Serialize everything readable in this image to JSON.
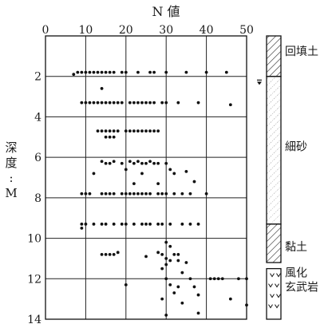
{
  "chart_data": {
    "type": "scatter",
    "title": "N 値",
    "ylabel": [
      "深",
      "度",
      ":",
      "M"
    ],
    "xlim": [
      0,
      50
    ],
    "ylim": [
      0,
      14
    ],
    "x_ticks": [
      0,
      10,
      20,
      30,
      40,
      50
    ],
    "y_ticks": [
      2,
      4,
      6,
      8,
      10,
      12,
      14
    ],
    "grid": true,
    "series": [
      {
        "points": [
          {
            "x": 7,
            "y": 1.9
          },
          {
            "x": 8,
            "y": 1.8
          },
          {
            "x": 9,
            "y": 1.8
          },
          {
            "x": 10,
            "y": 1.8
          },
          {
            "x": 11,
            "y": 1.8
          },
          {
            "x": 12,
            "y": 1.8
          },
          {
            "x": 13,
            "y": 1.8
          },
          {
            "x": 14,
            "y": 1.8
          },
          {
            "x": 15,
            "y": 1.8
          },
          {
            "x": 16,
            "y": 1.8
          },
          {
            "x": 17,
            "y": 1.8
          },
          {
            "x": 19,
            "y": 1.8
          },
          {
            "x": 20,
            "y": 1.8
          },
          {
            "x": 23,
            "y": 1.8
          },
          {
            "x": 26,
            "y": 1.8
          },
          {
            "x": 27,
            "y": 1.8
          },
          {
            "x": 30,
            "y": 1.8
          },
          {
            "x": 35,
            "y": 1.8
          },
          {
            "x": 40,
            "y": 1.8
          },
          {
            "x": 45,
            "y": 1.8
          },
          {
            "x": 14,
            "y": 2.6
          },
          {
            "x": 9,
            "y": 3.3
          },
          {
            "x": 10,
            "y": 3.3
          },
          {
            "x": 11,
            "y": 3.3
          },
          {
            "x": 12,
            "y": 3.3
          },
          {
            "x": 13,
            "y": 3.3
          },
          {
            "x": 14,
            "y": 3.3
          },
          {
            "x": 15,
            "y": 3.3
          },
          {
            "x": 16,
            "y": 3.3
          },
          {
            "x": 17,
            "y": 3.3
          },
          {
            "x": 18,
            "y": 3.3
          },
          {
            "x": 19,
            "y": 3.3
          },
          {
            "x": 21,
            "y": 3.3
          },
          {
            "x": 22,
            "y": 3.3
          },
          {
            "x": 23,
            "y": 3.3
          },
          {
            "x": 24,
            "y": 3.3
          },
          {
            "x": 25,
            "y": 3.3
          },
          {
            "x": 26,
            "y": 3.3
          },
          {
            "x": 27,
            "y": 3.3
          },
          {
            "x": 29,
            "y": 3.3
          },
          {
            "x": 30,
            "y": 3.3
          },
          {
            "x": 33,
            "y": 3.3
          },
          {
            "x": 38,
            "y": 3.3
          },
          {
            "x": 46,
            "y": 3.4
          },
          {
            "x": 13,
            "y": 4.7
          },
          {
            "x": 14,
            "y": 4.7
          },
          {
            "x": 15,
            "y": 4.7
          },
          {
            "x": 16,
            "y": 4.7
          },
          {
            "x": 17,
            "y": 4.7
          },
          {
            "x": 18,
            "y": 4.7
          },
          {
            "x": 20,
            "y": 4.7
          },
          {
            "x": 21,
            "y": 4.7
          },
          {
            "x": 22,
            "y": 4.7
          },
          {
            "x": 23,
            "y": 4.7
          },
          {
            "x": 24,
            "y": 4.7
          },
          {
            "x": 25,
            "y": 4.7
          },
          {
            "x": 26,
            "y": 4.7
          },
          {
            "x": 27,
            "y": 4.7
          },
          {
            "x": 28,
            "y": 4.7
          },
          {
            "x": 15,
            "y": 5.0
          },
          {
            "x": 16,
            "y": 5.0
          },
          {
            "x": 17,
            "y": 5.0
          },
          {
            "x": 14,
            "y": 6.2
          },
          {
            "x": 17,
            "y": 6.2
          },
          {
            "x": 21,
            "y": 6.2
          },
          {
            "x": 23,
            "y": 6.2
          },
          {
            "x": 26,
            "y": 6.2
          },
          {
            "x": 15,
            "y": 6.3
          },
          {
            "x": 16,
            "y": 6.3
          },
          {
            "x": 19,
            "y": 6.3
          },
          {
            "x": 22,
            "y": 6.3
          },
          {
            "x": 24,
            "y": 6.3
          },
          {
            "x": 25,
            "y": 6.3
          },
          {
            "x": 27,
            "y": 6.3
          },
          {
            "x": 28,
            "y": 6.3
          },
          {
            "x": 30,
            "y": 6.3
          },
          {
            "x": 20,
            "y": 6.6
          },
          {
            "x": 31,
            "y": 6.6
          },
          {
            "x": 12,
            "y": 6.8
          },
          {
            "x": 24,
            "y": 6.8
          },
          {
            "x": 32,
            "y": 6.8
          },
          {
            "x": 35,
            "y": 6.7
          },
          {
            "x": 22,
            "y": 7.3
          },
          {
            "x": 37,
            "y": 7.2
          },
          {
            "x": 28,
            "y": 7.3
          },
          {
            "x": 9,
            "y": 7.8
          },
          {
            "x": 10,
            "y": 7.8
          },
          {
            "x": 11,
            "y": 7.8
          },
          {
            "x": 14,
            "y": 7.8
          },
          {
            "x": 15,
            "y": 7.8
          },
          {
            "x": 16,
            "y": 7.8
          },
          {
            "x": 17,
            "y": 7.8
          },
          {
            "x": 19,
            "y": 7.8
          },
          {
            "x": 20,
            "y": 7.8
          },
          {
            "x": 21,
            "y": 7.8
          },
          {
            "x": 22,
            "y": 7.8
          },
          {
            "x": 23,
            "y": 7.8
          },
          {
            "x": 24,
            "y": 7.8
          },
          {
            "x": 25,
            "y": 7.8
          },
          {
            "x": 26,
            "y": 7.8
          },
          {
            "x": 28,
            "y": 7.8
          },
          {
            "x": 29,
            "y": 7.8
          },
          {
            "x": 30,
            "y": 7.8
          },
          {
            "x": 32,
            "y": 7.8
          },
          {
            "x": 34,
            "y": 7.8
          },
          {
            "x": 36,
            "y": 7.8
          },
          {
            "x": 40,
            "y": 7.8
          },
          {
            "x": 9,
            "y": 9.3
          },
          {
            "x": 10,
            "y": 9.3
          },
          {
            "x": 12,
            "y": 9.3
          },
          {
            "x": 14,
            "y": 9.3
          },
          {
            "x": 15,
            "y": 9.3
          },
          {
            "x": 17,
            "y": 9.3
          },
          {
            "x": 19,
            "y": 9.3
          },
          {
            "x": 20,
            "y": 9.3
          },
          {
            "x": 22,
            "y": 9.3
          },
          {
            "x": 24,
            "y": 9.3
          },
          {
            "x": 25,
            "y": 9.3
          },
          {
            "x": 26,
            "y": 9.3
          },
          {
            "x": 28,
            "y": 9.3
          },
          {
            "x": 29,
            "y": 9.3
          },
          {
            "x": 31,
            "y": 9.3
          },
          {
            "x": 34,
            "y": 9.3
          },
          {
            "x": 36,
            "y": 9.3
          },
          {
            "x": 38,
            "y": 9.3
          },
          {
            "x": 9,
            "y": 9.5
          },
          {
            "x": 30,
            "y": 10.2
          },
          {
            "x": 31,
            "y": 10.4
          },
          {
            "x": 14,
            "y": 10.8
          },
          {
            "x": 15,
            "y": 10.8
          },
          {
            "x": 16,
            "y": 10.8
          },
          {
            "x": 17,
            "y": 10.8
          },
          {
            "x": 18,
            "y": 10.7
          },
          {
            "x": 25,
            "y": 10.9
          },
          {
            "x": 28,
            "y": 10.7
          },
          {
            "x": 29,
            "y": 10.8
          },
          {
            "x": 32,
            "y": 10.8
          },
          {
            "x": 33,
            "y": 10.8
          },
          {
            "x": 30,
            "y": 11.0
          },
          {
            "x": 31,
            "y": 11.1
          },
          {
            "x": 33,
            "y": 11.1
          },
          {
            "x": 30,
            "y": 11.3
          },
          {
            "x": 35,
            "y": 11.2
          },
          {
            "x": 29,
            "y": 11.5
          },
          {
            "x": 34,
            "y": 11.7
          },
          {
            "x": 30,
            "y": 12.0
          },
          {
            "x": 36,
            "y": 12.0
          },
          {
            "x": 41,
            "y": 12.0
          },
          {
            "x": 42,
            "y": 12.0
          },
          {
            "x": 43,
            "y": 12.0
          },
          {
            "x": 44,
            "y": 12.0
          },
          {
            "x": 48,
            "y": 12.0
          },
          {
            "x": 50,
            "y": 12.0
          },
          {
            "x": 20,
            "y": 12.3
          },
          {
            "x": 31,
            "y": 12.3
          },
          {
            "x": 33,
            "y": 12.4
          },
          {
            "x": 37,
            "y": 12.4
          },
          {
            "x": 32,
            "y": 12.7
          },
          {
            "x": 38,
            "y": 12.8
          },
          {
            "x": 29,
            "y": 13.0
          },
          {
            "x": 46,
            "y": 13.0
          },
          {
            "x": 34,
            "y": 13.2
          },
          {
            "x": 50,
            "y": 13.3
          },
          {
            "x": 30,
            "y": 13.8
          },
          {
            "x": 38,
            "y": 13.7
          }
        ]
      }
    ],
    "soil_column": [
      {
        "label": "回填土",
        "top": 0,
        "bottom": 2.0,
        "pattern": "hatch"
      },
      {
        "label": "細砂",
        "top": 2.0,
        "bottom": 9.3,
        "pattern": "dotted-hatch"
      },
      {
        "label": "黏土",
        "top": 9.3,
        "bottom": 11.2,
        "pattern": "hatch"
      },
      {
        "label": [
          "風化",
          "玄武岩"
        ],
        "top": 11.5,
        "bottom": 14,
        "pattern": "v-marks"
      }
    ],
    "water_table_depth": 2.3
  }
}
